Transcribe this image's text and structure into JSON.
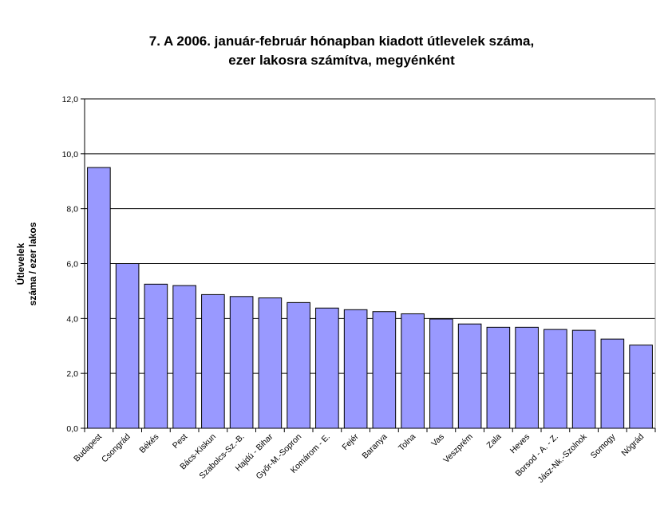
{
  "chart_data": {
    "type": "bar",
    "title_lines": [
      "7. A 2006. január-február hónapban kiadott útlevelek száma,",
      "ezer lakosra számítva, megyénként"
    ],
    "ylabel_lines": [
      "Útlevelek",
      "száma / ezer lakos"
    ],
    "xlabel": "",
    "ylim": [
      0,
      12
    ],
    "ytick_values": [
      0,
      2,
      4,
      6,
      8,
      10,
      12
    ],
    "ytick_labels": [
      "0,0",
      "2,0",
      "4,0",
      "6,0",
      "8,0",
      "10,0",
      "12,0"
    ],
    "grid": true,
    "bar_color": "#9999ff",
    "categories": [
      "Budapest",
      "Csongrád",
      "Békés",
      "Pest",
      "Bács-Kiskun",
      "Szabolcs-Sz.-B.",
      "Hajdú - Bihar",
      "Győr-M.-Sopron",
      "Komárom - E.",
      "Fejér",
      "Baranya",
      "Tolna",
      "Vas",
      "Veszprém",
      "Zala",
      "Heves",
      "Borsod - A. - Z.",
      "Jász-Nk.-Szolnok",
      "Somogy",
      "Nógrád"
    ],
    "values": [
      9.5,
      6.0,
      5.25,
      5.2,
      4.87,
      4.8,
      4.75,
      4.58,
      4.38,
      4.32,
      4.25,
      4.17,
      3.98,
      3.8,
      3.68,
      3.68,
      3.6,
      3.57,
      3.25,
      3.03
    ]
  }
}
